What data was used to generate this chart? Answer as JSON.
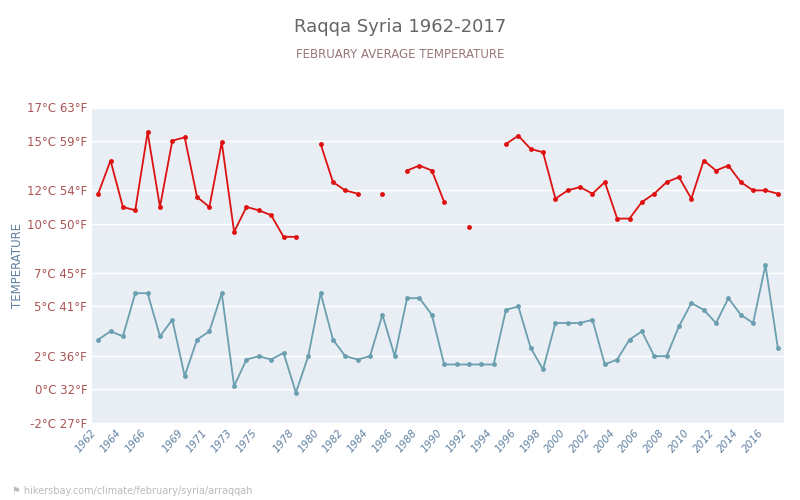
{
  "title": "Raqqa Syria 1962-2017",
  "subtitle": "FEBRUARY AVERAGE TEMPERATURE",
  "ylabel": "TEMPERATURE",
  "url": "hikersbay.com/climate/february/syria/arraqqah",
  "background_color": "#ffffff",
  "plot_bg_color": "#e8eef4",
  "grid_color": "#ffffff",
  "title_color": "#666666",
  "subtitle_color": "#997777",
  "ylabel_color": "#6080a0",
  "ytick_color": "#aa5555",
  "xtick_color": "#6080a0",
  "day_color": "#dd1111",
  "night_color": "#6a9faf",
  "ylim_min": -2,
  "ylim_max": 17,
  "yticks_c": [
    -2,
    0,
    2,
    5,
    7,
    10,
    12,
    15,
    17
  ],
  "yticks_f": [
    27,
    32,
    36,
    41,
    45,
    50,
    54,
    59,
    63
  ],
  "years": [
    1962,
    1963,
    1964,
    1965,
    1966,
    1967,
    1968,
    1969,
    1970,
    1971,
    1972,
    1973,
    1974,
    1975,
    1976,
    1977,
    1978,
    1979,
    1980,
    1981,
    1982,
    1983,
    1984,
    1985,
    1986,
    1987,
    1988,
    1989,
    1990,
    1991,
    1992,
    1993,
    1994,
    1995,
    1996,
    1997,
    1998,
    1999,
    2000,
    2001,
    2002,
    2003,
    2004,
    2005,
    2006,
    2007,
    2008,
    2009,
    2010,
    2011,
    2012,
    2013,
    2014,
    2015,
    2016,
    2017
  ],
  "day_temps": [
    11.8,
    13.8,
    11.0,
    10.8,
    15.5,
    11.0,
    15.0,
    15.2,
    11.6,
    11.0,
    14.9,
    9.5,
    11.0,
    10.8,
    10.5,
    9.2,
    9.2,
    null,
    14.8,
    12.5,
    12.0,
    11.8,
    null,
    11.8,
    null,
    13.2,
    13.5,
    13.2,
    11.3,
    null,
    9.8,
    null,
    null,
    14.8,
    15.3,
    14.5,
    14.3,
    11.5,
    12.0,
    12.2,
    11.8,
    12.5,
    10.3,
    10.3,
    11.3,
    11.8,
    12.5,
    12.8,
    11.5,
    13.8,
    13.2,
    13.5,
    12.5,
    12.0,
    12.0,
    11.8
  ],
  "night_temps": [
    3.0,
    3.5,
    3.2,
    5.8,
    5.8,
    3.2,
    4.2,
    0.8,
    3.0,
    3.5,
    5.8,
    0.2,
    1.8,
    2.0,
    1.8,
    2.2,
    -0.2,
    2.0,
    5.8,
    3.0,
    2.0,
    1.8,
    2.0,
    4.5,
    2.0,
    5.5,
    5.5,
    4.5,
    1.5,
    1.5,
    1.5,
    1.5,
    1.5,
    4.8,
    5.0,
    2.5,
    1.2,
    4.0,
    4.0,
    4.0,
    4.2,
    1.5,
    1.8,
    3.0,
    3.5,
    2.0,
    2.0,
    3.8,
    5.2,
    4.8,
    4.0,
    5.5,
    4.5,
    4.0,
    7.5,
    2.5
  ],
  "xtick_years": [
    1962,
    1964,
    1966,
    1969,
    1971,
    1973,
    1975,
    1978,
    1980,
    1982,
    1984,
    1986,
    1988,
    1990,
    1992,
    1994,
    1996,
    1998,
    2000,
    2002,
    2004,
    2006,
    2008,
    2010,
    2012,
    2014,
    2016
  ]
}
